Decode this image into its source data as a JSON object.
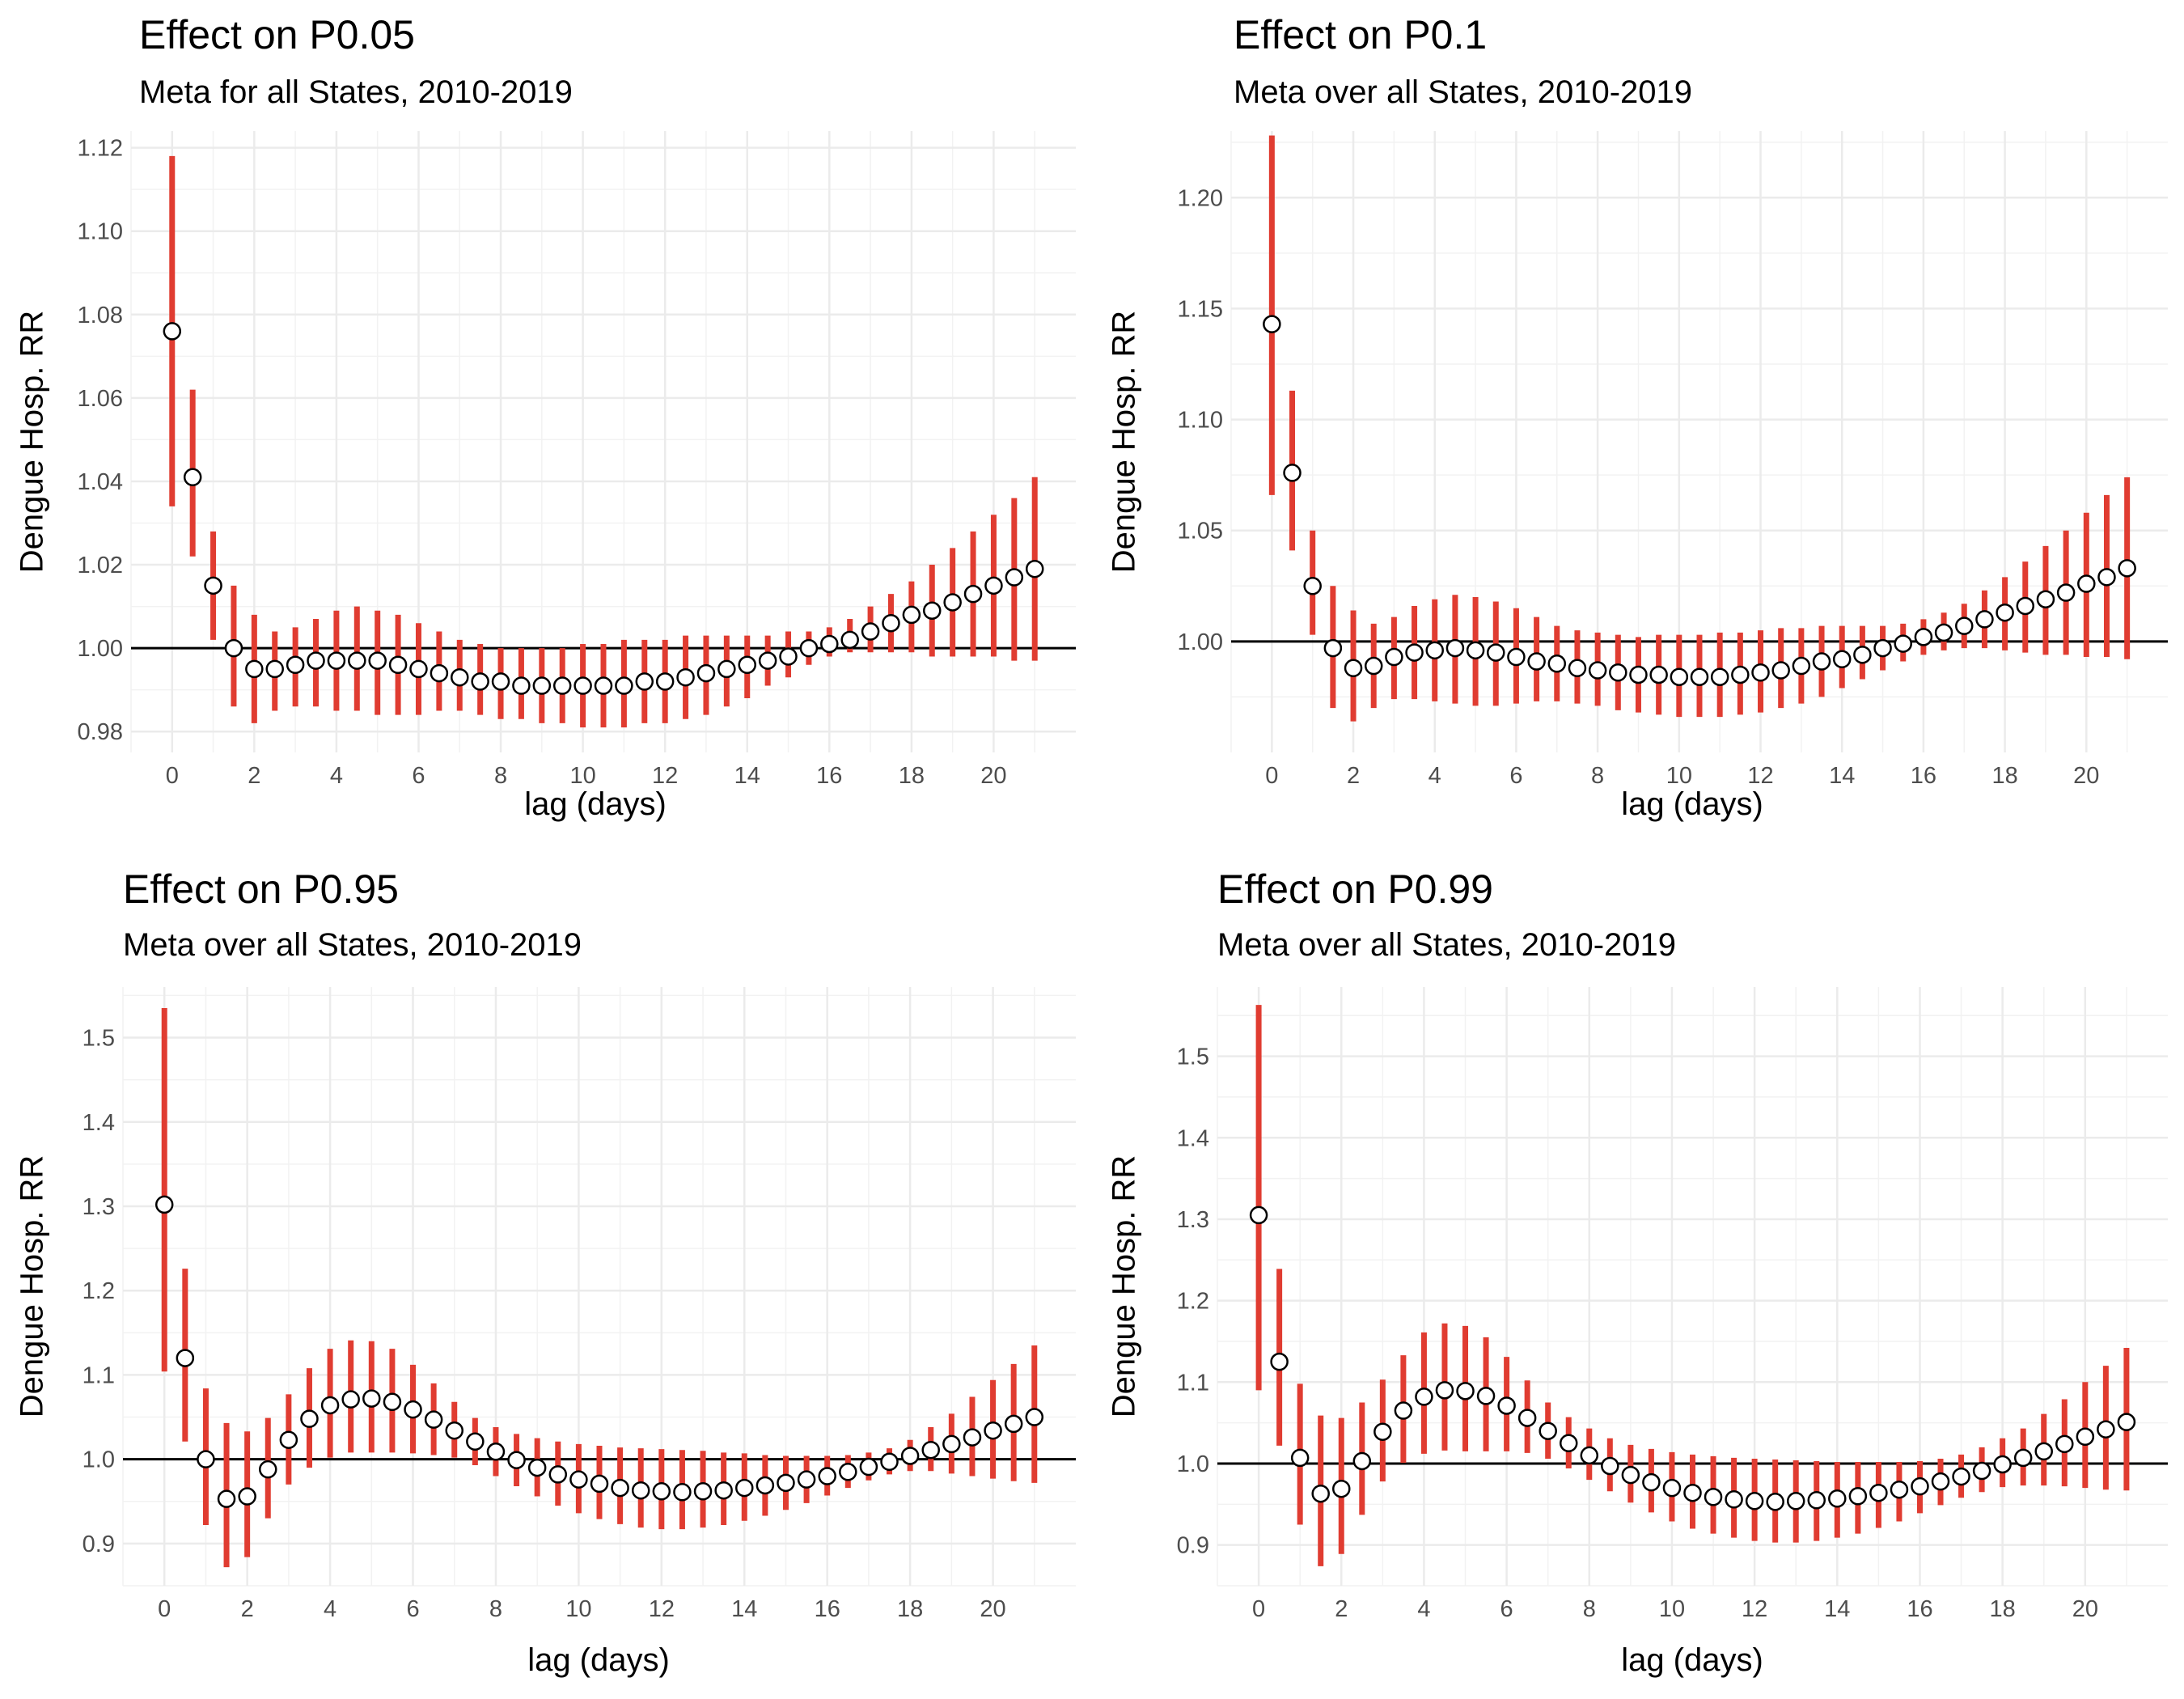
{
  "chart_data": [
    {
      "type": "scatter",
      "title": "Effect on P0.05",
      "subtitle": "Meta for all States, 2010-2019",
      "xlabel": "lag (days)",
      "ylabel": "Dengue Hosp. RR",
      "x_ticks": [
        0,
        2,
        4,
        6,
        8,
        10,
        12,
        14,
        16,
        18,
        20
      ],
      "y_ticks": [
        0.98,
        1.0,
        1.02,
        1.04,
        1.06,
        1.08,
        1.1,
        1.12
      ],
      "y_tick_labels": [
        "0.98",
        "1.00",
        "1.02",
        "1.04",
        "1.06",
        "1.08",
        "1.10",
        "1.12"
      ],
      "xlim": [
        -1,
        22
      ],
      "ylim": [
        0.975,
        1.124
      ],
      "reference_line": 1.0,
      "lag": [
        0,
        0.5,
        1,
        1.5,
        2,
        2.5,
        3,
        3.5,
        4,
        4.5,
        5,
        5.5,
        6,
        6.5,
        7,
        7.5,
        8,
        8.5,
        9,
        9.5,
        10,
        10.5,
        11,
        11.5,
        12,
        12.5,
        13,
        13.5,
        14,
        14.5,
        15,
        15.5,
        16,
        16.5,
        17,
        17.5,
        18,
        18.5,
        19,
        19.5,
        20,
        20.5,
        21
      ],
      "rr": [
        1.076,
        1.041,
        1.015,
        1.0,
        0.995,
        0.995,
        0.996,
        0.997,
        0.997,
        0.997,
        0.997,
        0.996,
        0.995,
        0.994,
        0.993,
        0.992,
        0.992,
        0.991,
        0.991,
        0.991,
        0.991,
        0.991,
        0.991,
        0.992,
        0.992,
        0.993,
        0.994,
        0.995,
        0.996,
        0.997,
        0.998,
        1.0,
        1.001,
        1.002,
        1.004,
        1.006,
        1.008,
        1.009,
        1.011,
        1.013,
        1.015,
        1.017,
        1.019
      ],
      "ci_low": [
        1.034,
        1.022,
        1.002,
        0.986,
        0.982,
        0.985,
        0.986,
        0.986,
        0.985,
        0.985,
        0.984,
        0.984,
        0.984,
        0.985,
        0.985,
        0.984,
        0.983,
        0.983,
        0.982,
        0.982,
        0.981,
        0.981,
        0.981,
        0.982,
        0.982,
        0.983,
        0.984,
        0.986,
        0.988,
        0.991,
        0.993,
        0.996,
        0.998,
        0.999,
        0.999,
        0.999,
        0.999,
        0.998,
        0.998,
        0.998,
        0.998,
        0.997,
        0.997
      ],
      "ci_high": [
        1.118,
        1.062,
        1.028,
        1.015,
        1.008,
        1.004,
        1.005,
        1.007,
        1.009,
        1.01,
        1.009,
        1.008,
        1.006,
        1.004,
        1.002,
        1.001,
        1.0,
        1.0,
        1.0,
        1.0,
        1.001,
        1.001,
        1.002,
        1.002,
        1.002,
        1.003,
        1.003,
        1.003,
        1.003,
        1.003,
        1.004,
        1.004,
        1.005,
        1.007,
        1.01,
        1.013,
        1.016,
        1.02,
        1.024,
        1.028,
        1.032,
        1.036,
        1.041
      ]
    },
    {
      "type": "scatter",
      "title": "Effect on P0.1",
      "subtitle": "Meta over all States, 2010-2019",
      "xlabel": "lag (days)",
      "ylabel": "Dengue Hosp. RR",
      "x_ticks": [
        0,
        2,
        4,
        6,
        8,
        10,
        12,
        14,
        16,
        18,
        20
      ],
      "y_ticks": [
        1.0,
        1.05,
        1.1,
        1.15,
        1.2
      ],
      "y_tick_labels": [
        "1.00",
        "1.05",
        "1.10",
        "1.15",
        "1.20"
      ],
      "xlim": [
        -1,
        22
      ],
      "ylim": [
        0.95,
        1.23
      ],
      "reference_line": 1.0,
      "lag": [
        0,
        0.5,
        1,
        1.5,
        2,
        2.5,
        3,
        3.5,
        4,
        4.5,
        5,
        5.5,
        6,
        6.5,
        7,
        7.5,
        8,
        8.5,
        9,
        9.5,
        10,
        10.5,
        11,
        11.5,
        12,
        12.5,
        13,
        13.5,
        14,
        14.5,
        15,
        15.5,
        16,
        16.5,
        17,
        17.5,
        18,
        18.5,
        19,
        19.5,
        20,
        20.5,
        21
      ],
      "rr": [
        1.143,
        1.076,
        1.025,
        0.997,
        0.988,
        0.989,
        0.993,
        0.995,
        0.996,
        0.997,
        0.996,
        0.995,
        0.993,
        0.991,
        0.99,
        0.988,
        0.987,
        0.986,
        0.985,
        0.985,
        0.984,
        0.984,
        0.984,
        0.985,
        0.986,
        0.987,
        0.989,
        0.991,
        0.992,
        0.994,
        0.997,
        0.999,
        1.002,
        1.004,
        1.007,
        1.01,
        1.013,
        1.016,
        1.019,
        1.022,
        1.026,
        1.029,
        1.033
      ],
      "ci_low": [
        1.066,
        1.041,
        1.003,
        0.97,
        0.964,
        0.97,
        0.974,
        0.974,
        0.973,
        0.972,
        0.971,
        0.971,
        0.972,
        0.973,
        0.973,
        0.972,
        0.971,
        0.969,
        0.968,
        0.967,
        0.966,
        0.966,
        0.966,
        0.967,
        0.968,
        0.97,
        0.972,
        0.975,
        0.979,
        0.983,
        0.987,
        0.991,
        0.994,
        0.996,
        0.997,
        0.997,
        0.996,
        0.995,
        0.994,
        0.994,
        0.993,
        0.993,
        0.992
      ],
      "ci_high": [
        1.228,
        1.113,
        1.05,
        1.025,
        1.014,
        1.008,
        1.011,
        1.016,
        1.019,
        1.021,
        1.02,
        1.018,
        1.015,
        1.011,
        1.007,
        1.005,
        1.004,
        1.003,
        1.002,
        1.003,
        1.003,
        1.003,
        1.004,
        1.004,
        1.005,
        1.006,
        1.006,
        1.007,
        1.007,
        1.007,
        1.007,
        1.008,
        1.01,
        1.013,
        1.017,
        1.023,
        1.029,
        1.036,
        1.043,
        1.05,
        1.058,
        1.066,
        1.074
      ]
    },
    {
      "type": "scatter",
      "title": "Effect on P0.95",
      "subtitle": "Meta over all States, 2010-2019",
      "xlabel": "lag (days)",
      "ylabel": "Dengue Hosp. RR",
      "x_ticks": [
        0,
        2,
        4,
        6,
        8,
        10,
        12,
        14,
        16,
        18,
        20
      ],
      "y_ticks": [
        0.9,
        1.0,
        1.1,
        1.2,
        1.3,
        1.4,
        1.5
      ],
      "y_tick_labels": [
        "0.9",
        "1.0",
        "1.1",
        "1.2",
        "1.3",
        "1.4",
        "1.5"
      ],
      "xlim": [
        -1,
        22
      ],
      "ylim": [
        0.85,
        1.56
      ],
      "reference_line": 1.0,
      "lag": [
        0,
        0.5,
        1,
        1.5,
        2,
        2.5,
        3,
        3.5,
        4,
        4.5,
        5,
        5.5,
        6,
        6.5,
        7,
        7.5,
        8,
        8.5,
        9,
        9.5,
        10,
        10.5,
        11,
        11.5,
        12,
        12.5,
        13,
        13.5,
        14,
        14.5,
        15,
        15.5,
        16,
        16.5,
        17,
        17.5,
        18,
        18.5,
        19,
        19.5,
        20,
        20.5,
        21
      ],
      "rr": [
        1.302,
        1.12,
        1.0,
        0.953,
        0.956,
        0.988,
        1.023,
        1.048,
        1.064,
        1.071,
        1.072,
        1.068,
        1.059,
        1.047,
        1.034,
        1.021,
        1.009,
        0.999,
        0.99,
        0.982,
        0.976,
        0.971,
        0.966,
        0.963,
        0.962,
        0.961,
        0.962,
        0.963,
        0.966,
        0.969,
        0.972,
        0.976,
        0.98,
        0.985,
        0.991,
        0.997,
        1.004,
        1.011,
        1.018,
        1.026,
        1.034,
        1.042,
        1.05
      ],
      "ci_low": [
        1.104,
        1.021,
        0.922,
        0.872,
        0.884,
        0.93,
        0.97,
        0.99,
        1.002,
        1.008,
        1.008,
        1.008,
        1.007,
        1.005,
        1.002,
        0.993,
        0.98,
        0.968,
        0.956,
        0.945,
        0.936,
        0.929,
        0.923,
        0.919,
        0.917,
        0.917,
        0.919,
        0.922,
        0.927,
        0.933,
        0.94,
        0.948,
        0.957,
        0.966,
        0.975,
        0.982,
        0.986,
        0.986,
        0.983,
        0.98,
        0.977,
        0.974,
        0.972
      ],
      "ci_high": [
        1.535,
        1.226,
        1.084,
        1.043,
        1.033,
        1.049,
        1.077,
        1.108,
        1.131,
        1.141,
        1.14,
        1.131,
        1.112,
        1.09,
        1.068,
        1.049,
        1.038,
        1.03,
        1.025,
        1.021,
        1.018,
        1.016,
        1.014,
        1.013,
        1.012,
        1.011,
        1.01,
        1.008,
        1.007,
        1.005,
        1.004,
        1.004,
        1.004,
        1.005,
        1.008,
        1.013,
        1.023,
        1.038,
        1.054,
        1.074,
        1.094,
        1.113,
        1.135
      ]
    },
    {
      "type": "scatter",
      "title": "Effect on P0.99",
      "subtitle": "Meta over all States, 2010-2019",
      "xlabel": "lag (days)",
      "ylabel": "Dengue Hosp. RR",
      "x_ticks": [
        0,
        2,
        4,
        6,
        8,
        10,
        12,
        14,
        16,
        18,
        20
      ],
      "y_ticks": [
        0.9,
        1.0,
        1.1,
        1.2,
        1.3,
        1.4,
        1.5
      ],
      "y_tick_labels": [
        "0.9",
        "1.0",
        "1.1",
        "1.2",
        "1.3",
        "1.4",
        "1.5"
      ],
      "xlim": [
        -1,
        22
      ],
      "ylim": [
        0.85,
        1.585
      ],
      "reference_line": 1.0,
      "lag": [
        0,
        0.5,
        1,
        1.5,
        2,
        2.5,
        3,
        3.5,
        4,
        4.5,
        5,
        5.5,
        6,
        6.5,
        7,
        7.5,
        8,
        8.5,
        9,
        9.5,
        10,
        10.5,
        11,
        11.5,
        12,
        12.5,
        13,
        13.5,
        14,
        14.5,
        15,
        15.5,
        16,
        16.5,
        17,
        17.5,
        18,
        18.5,
        19,
        19.5,
        20,
        20.5,
        21
      ],
      "rr": [
        1.305,
        1.125,
        1.007,
        0.963,
        0.969,
        1.003,
        1.039,
        1.065,
        1.082,
        1.09,
        1.089,
        1.083,
        1.071,
        1.056,
        1.04,
        1.025,
        1.01,
        0.997,
        0.986,
        0.977,
        0.97,
        0.964,
        0.959,
        0.956,
        0.954,
        0.953,
        0.954,
        0.955,
        0.957,
        0.96,
        0.964,
        0.968,
        0.972,
        0.978,
        0.984,
        0.991,
        0.999,
        1.007,
        1.015,
        1.024,
        1.033,
        1.042,
        1.051
      ],
      "ci_low": [
        1.09,
        1.022,
        0.925,
        0.874,
        0.889,
        0.937,
        0.978,
        1.001,
        1.012,
        1.016,
        1.015,
        1.015,
        1.015,
        1.013,
        1.006,
        0.994,
        0.98,
        0.966,
        0.952,
        0.94,
        0.929,
        0.92,
        0.914,
        0.909,
        0.905,
        0.903,
        0.903,
        0.905,
        0.909,
        0.914,
        0.921,
        0.929,
        0.939,
        0.949,
        0.958,
        0.965,
        0.971,
        0.973,
        0.973,
        0.972,
        0.97,
        0.968,
        0.967
      ],
      "ci_high": [
        1.563,
        1.239,
        1.098,
        1.059,
        1.056,
        1.075,
        1.103,
        1.133,
        1.161,
        1.172,
        1.169,
        1.155,
        1.131,
        1.102,
        1.075,
        1.057,
        1.043,
        1.031,
        1.023,
        1.018,
        1.014,
        1.011,
        1.009,
        1.007,
        1.006,
        1.005,
        1.004,
        1.003,
        1.002,
        1.002,
        1.002,
        1.002,
        1.003,
        1.006,
        1.011,
        1.02,
        1.031,
        1.043,
        1.061,
        1.079,
        1.1,
        1.12,
        1.142
      ]
    }
  ]
}
